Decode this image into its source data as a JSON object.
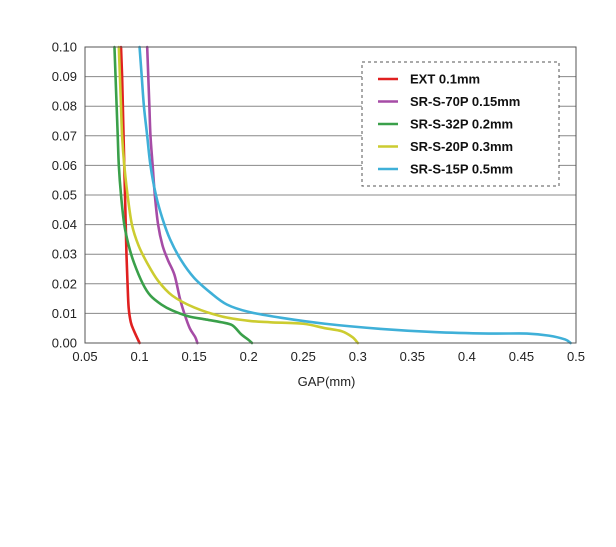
{
  "chart_data": {
    "type": "line",
    "title": "",
    "xlabel": "GAP(mm)",
    "ylabel": "",
    "xlim": [
      0.05,
      0.5
    ],
    "ylim": [
      0.0,
      0.1
    ],
    "xticks": [
      "0.05",
      "0.1",
      "0.15",
      "0.2",
      "0.25",
      "0.3",
      "0.35",
      "0.4",
      "0.45",
      "0.5"
    ],
    "yticks": [
      "0.00",
      "0.01",
      "0.02",
      "0.03",
      "0.04",
      "0.05",
      "0.06",
      "0.07",
      "0.08",
      "0.09",
      "0.10"
    ],
    "grid": "horizontal",
    "legend": "top-right",
    "series": [
      {
        "name": "EXT 0.1mm",
        "color": "#e02020",
        "x": [
          0.083,
          0.084,
          0.085,
          0.086,
          0.087,
          0.088,
          0.089,
          0.09,
          0.092,
          0.095,
          0.1
        ],
        "y": [
          0.1,
          0.09,
          0.075,
          0.06,
          0.045,
          0.03,
          0.02,
          0.012,
          0.007,
          0.004,
          0.0
        ]
      },
      {
        "name": "SR-S-70P 0.15mm",
        "color": "#a64ca6",
        "x": [
          0.107,
          0.108,
          0.109,
          0.11,
          0.112,
          0.114,
          0.117,
          0.121,
          0.126,
          0.132,
          0.137,
          0.141,
          0.146,
          0.151,
          0.153
        ],
        "y": [
          0.1,
          0.09,
          0.08,
          0.07,
          0.06,
          0.05,
          0.04,
          0.033,
          0.028,
          0.023,
          0.015,
          0.01,
          0.005,
          0.002,
          0.0
        ]
      },
      {
        "name": "SR-S-32P 0.2mm",
        "color": "#3aa04a",
        "x": [
          0.077,
          0.078,
          0.079,
          0.08,
          0.081,
          0.083,
          0.086,
          0.09,
          0.095,
          0.103,
          0.11,
          0.12,
          0.13,
          0.145,
          0.16,
          0.175,
          0.185,
          0.193,
          0.2,
          0.203
        ],
        "y": [
          0.1,
          0.09,
          0.08,
          0.07,
          0.06,
          0.05,
          0.04,
          0.033,
          0.027,
          0.02,
          0.016,
          0.013,
          0.011,
          0.009,
          0.008,
          0.007,
          0.006,
          0.003,
          0.001,
          0.0
        ]
      },
      {
        "name": "SR-S-20P 0.3mm",
        "color": "#cccc30",
        "x": [
          0.081,
          0.082,
          0.083,
          0.084,
          0.086,
          0.089,
          0.093,
          0.099,
          0.107,
          0.117,
          0.13,
          0.15,
          0.175,
          0.2,
          0.22,
          0.25,
          0.27,
          0.285,
          0.295,
          0.3
        ],
        "y": [
          0.1,
          0.09,
          0.08,
          0.07,
          0.06,
          0.05,
          0.04,
          0.033,
          0.027,
          0.021,
          0.016,
          0.012,
          0.009,
          0.0075,
          0.007,
          0.0065,
          0.005,
          0.004,
          0.002,
          0.0
        ]
      },
      {
        "name": "SR-S-15P 0.5mm",
        "color": "#3fb0d8",
        "x": [
          0.1,
          0.102,
          0.104,
          0.107,
          0.11,
          0.115,
          0.121,
          0.128,
          0.138,
          0.15,
          0.165,
          0.18,
          0.2,
          0.23,
          0.27,
          0.32,
          0.37,
          0.42,
          0.455,
          0.475,
          0.49,
          0.495
        ],
        "y": [
          0.1,
          0.09,
          0.08,
          0.07,
          0.06,
          0.05,
          0.042,
          0.035,
          0.028,
          0.022,
          0.017,
          0.013,
          0.0105,
          0.0085,
          0.0065,
          0.0048,
          0.0037,
          0.0032,
          0.0032,
          0.0025,
          0.0012,
          0.0
        ]
      }
    ]
  }
}
